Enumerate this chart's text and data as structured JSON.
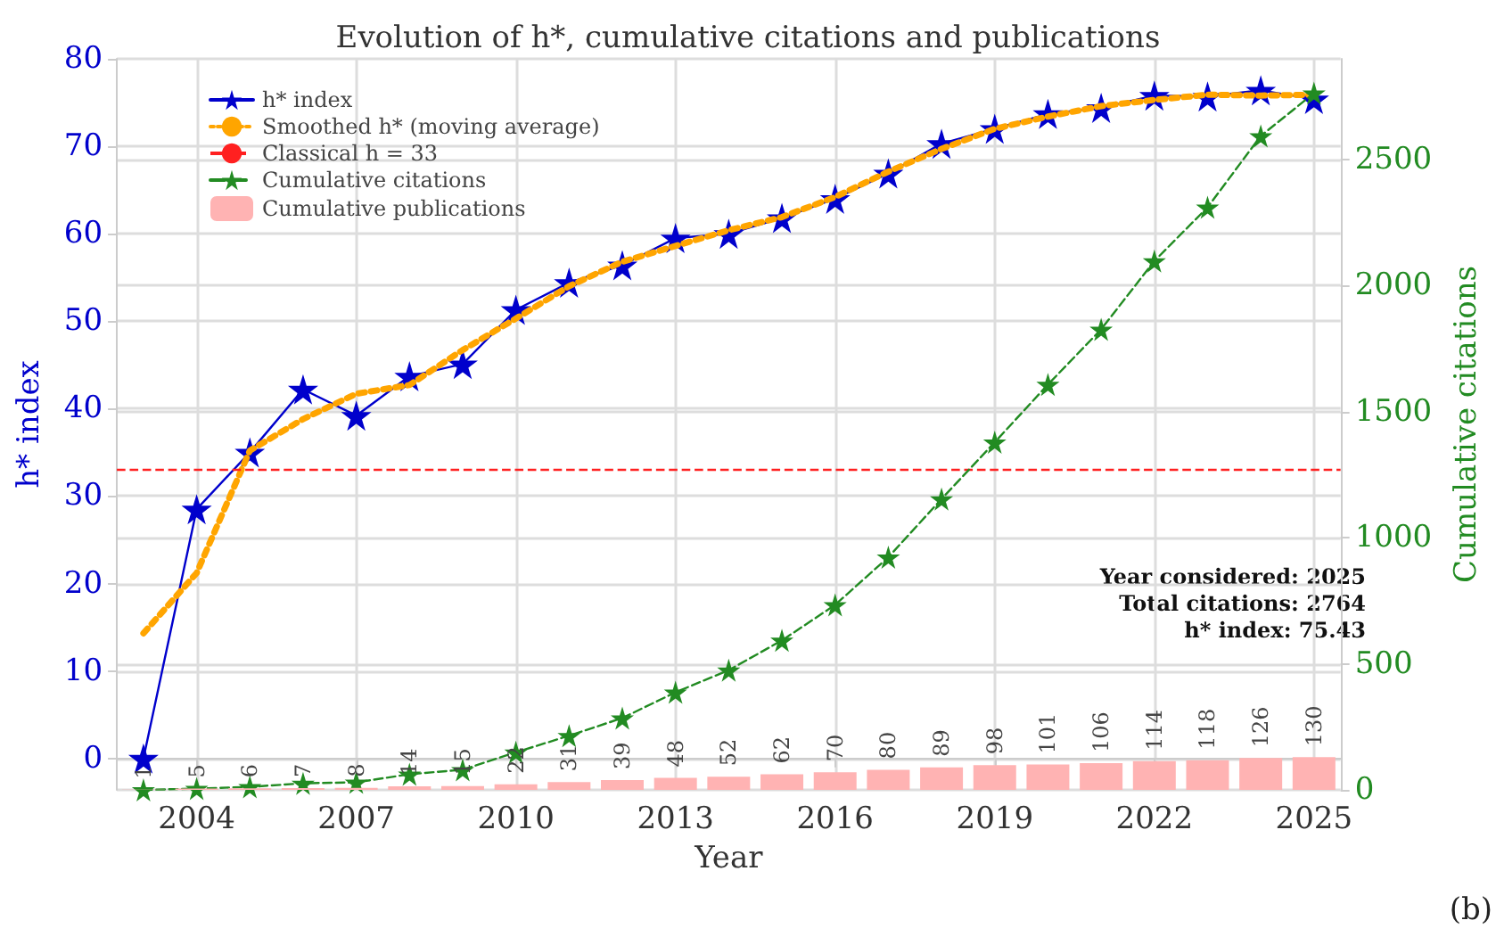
{
  "chart_data": {
    "type": "line",
    "title": "Evolution of h*, cumulative citations and publications",
    "xlabel": "Year",
    "ylabel": "h* index",
    "y2label": "Cumulative citations",
    "x": [
      2003,
      2004,
      2005,
      2006,
      2007,
      2008,
      2009,
      2010,
      2011,
      2012,
      2013,
      2014,
      2015,
      2016,
      2017,
      2018,
      2019,
      2020,
      2021,
      2022,
      2023,
      2024,
      2025
    ],
    "series": [
      {
        "name": "h* index",
        "color": "#0000cc",
        "marker": "star",
        "line_style": "solid",
        "values": [
          0,
          28.5,
          35,
          42.2,
          39.2,
          43.7,
          45.1,
          51.3,
          54.4,
          56.4,
          59.5,
          60,
          61.8,
          64,
          66.9,
          70.3,
          72,
          73.7,
          74.4,
          75.8,
          75.7,
          76.4,
          75.4
        ]
      },
      {
        "name": "Smoothed h* (moving average)",
        "color": "#ffa500",
        "marker": "none",
        "line_style": "dotted",
        "values": [
          14.3,
          21.2,
          35.2,
          38.8,
          41.7,
          42.7,
          46.7,
          50.3,
          54,
          56.8,
          58.6,
          60.4,
          61.9,
          64.2,
          67.1,
          69.7,
          72,
          73.4,
          74.6,
          75.3,
          75.9,
          75.8,
          75.9
        ]
      },
      {
        "name": "Cumulative citations",
        "axis": "y2",
        "color": "#228b22",
        "marker": "star",
        "line_style": "dashed",
        "values": [
          0,
          5,
          12,
          26,
          30,
          62,
          80,
          149,
          215,
          285,
          387,
          475,
          593,
          734,
          923,
          1154,
          1379,
          1608,
          1827,
          2098,
          2311,
          2594,
          2764
        ]
      },
      {
        "name": "Cumulative publications",
        "type": "bar",
        "axis": "y2",
        "color": "#ffb3b3",
        "values": [
          1,
          5,
          6,
          7,
          8,
          14,
          15,
          22,
          31,
          39,
          48,
          52,
          62,
          70,
          80,
          89,
          98,
          101,
          106,
          114,
          118,
          126,
          130
        ],
        "value_labels": [
          "1",
          "5",
          "6",
          "7",
          "8",
          "14",
          "15",
          "22",
          "31",
          "39",
          "48",
          "52",
          "62",
          "70",
          "80",
          "89",
          "98",
          "101",
          "106",
          "114",
          "118",
          "126",
          "130"
        ]
      }
    ],
    "ref_lines": [
      {
        "axis": "y",
        "value": 33,
        "label": "Classical h = 33",
        "color": "#ff2020",
        "line_style": "dashed"
      }
    ],
    "xlim": [
      2002.5,
      2025.5
    ],
    "xticks": [
      2004,
      2007,
      2010,
      2013,
      2016,
      2019,
      2022,
      2025
    ],
    "ylim": [
      -3.6,
      80
    ],
    "yticks": [
      0,
      10,
      20,
      30,
      40,
      50,
      60,
      70,
      80
    ],
    "y2lim": [
      0,
      2900
    ],
    "y2ticks": [
      0,
      500,
      1000,
      1500,
      2000,
      2500
    ],
    "grid": true,
    "legend": "top left",
    "annotations": [
      "Year considered: 2025\nTotal citations: 2764\nh* index: 75.43",
      "(b)"
    ]
  }
}
